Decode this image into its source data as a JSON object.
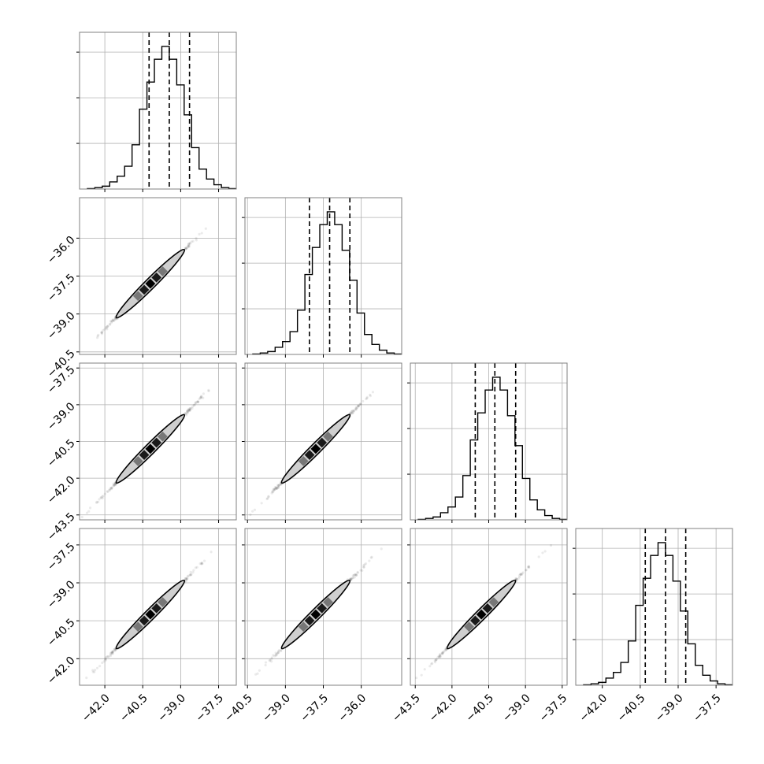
{
  "colors": {
    "ink": "#000000",
    "grid": "#b0b0b0",
    "contour_fill": "#cfcfcf",
    "background": "#ffffff"
  },
  "chart_data": {
    "type": "corner",
    "parameters": 4,
    "grid": true,
    "quantile_lines": "dashed",
    "axes": [
      {
        "range": [
          -43.0,
          -36.8
        ],
        "ticks": [
          -42.0,
          -40.5,
          -39.0,
          -37.5
        ],
        "tick_labels": [
          "−42.0",
          "−40.5",
          "−39.0",
          "−37.5"
        ]
      },
      {
        "range": [
          -40.6,
          -34.4
        ],
        "ticks": [
          -40.5,
          -39.0,
          -37.5,
          -36.0
        ],
        "tick_labels": [
          "−40.5",
          "−39.0",
          "−37.5",
          "−36.0"
        ]
      },
      {
        "range": [
          -43.7,
          -37.3
        ],
        "ticks": [
          -43.5,
          -42.0,
          -40.5,
          -39.0,
          -37.5
        ],
        "tick_labels": [
          "−43.5",
          "−42.0",
          "−40.5",
          "−39.0",
          "−37.5"
        ]
      },
      {
        "range": [
          -43.05,
          -36.85
        ],
        "ticks": [
          -42.0,
          -40.5,
          -39.0,
          -37.5
        ],
        "tick_labels": [
          "−42.0",
          "−40.5",
          "−39.0",
          "−37.5"
        ]
      }
    ],
    "histograms": [
      {
        "counts": [
          0.3,
          1,
          2,
          5,
          9,
          16,
          31,
          56,
          75,
          91,
          100,
          91,
          73,
          52,
          29,
          14,
          7,
          3,
          1,
          0.3
        ],
        "quantiles": [
          -40.25,
          -39.45,
          -38.65
        ]
      },
      {
        "counts": [
          0.3,
          1,
          2,
          5,
          9,
          16,
          31,
          56,
          75,
          91,
          100,
          91,
          73,
          52,
          29,
          14,
          7,
          3,
          1,
          0.3
        ],
        "quantiles": [
          -38.05,
          -37.25,
          -36.45
        ]
      },
      {
        "counts": [
          0.3,
          1,
          2,
          5,
          9,
          16,
          31,
          56,
          75,
          91,
          100,
          91,
          73,
          52,
          29,
          14,
          7,
          3,
          1,
          0.3
        ],
        "quantiles": [
          -41.05,
          -40.25,
          -39.4
        ]
      },
      {
        "counts": [
          0.3,
          1,
          2,
          5,
          9,
          16,
          31,
          56,
          75,
          91,
          100,
          91,
          73,
          52,
          29,
          14,
          7,
          3,
          1,
          0.3
        ],
        "quantiles": [
          -40.3,
          -39.5,
          -38.7
        ]
      }
    ],
    "correlation": 0.999
  }
}
